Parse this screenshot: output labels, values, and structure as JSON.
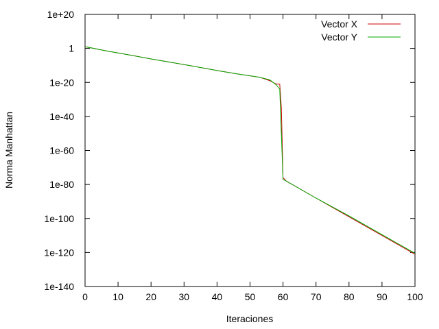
{
  "chart_data": {
    "type": "line",
    "title": "",
    "xlabel": "Iteraciones",
    "ylabel": "Norma Manhattan",
    "xlim": [
      0,
      100
    ],
    "ylim_log10": [
      -140,
      20
    ],
    "y_scale": "log",
    "grid": false,
    "legend_position": "top-right",
    "x_ticks": [
      0,
      10,
      20,
      30,
      40,
      50,
      60,
      70,
      80,
      90,
      100
    ],
    "x_tick_labels": [
      "0",
      "10",
      "20",
      "30",
      "40",
      "50",
      "60",
      "70",
      "80",
      "90",
      "100"
    ],
    "y_ticks_log10": [
      20,
      0,
      -20,
      -40,
      -60,
      -80,
      -100,
      -120,
      -140
    ],
    "y_tick_labels": [
      "1e+20",
      "1",
      "1e-20",
      "1e-40",
      "1e-60",
      "1e-80",
      "1e-100",
      "1e-120",
      "1e-140"
    ],
    "series": [
      {
        "name": "Vector X",
        "color": "#cc0000",
        "x": [
          0,
          7,
          14,
          20,
          27,
          33,
          40,
          46,
          53,
          56,
          57,
          58,
          59,
          59.5,
          60,
          61,
          70,
          80,
          90,
          100
        ],
        "log10y": [
          1,
          -1.7,
          -4,
          -6.2,
          -8.5,
          -10.5,
          -13,
          -15,
          -17,
          -19,
          -20,
          -21,
          -21,
          -35,
          -76,
          -78,
          -88,
          -99,
          -110,
          -121
        ]
      },
      {
        "name": "Vector Y",
        "color": "#00aa00",
        "x": [
          0,
          7,
          14,
          20,
          27,
          33,
          40,
          46,
          53,
          56,
          57,
          58,
          59,
          60,
          61,
          70,
          80,
          90,
          100
        ],
        "log10y": [
          1,
          -1.7,
          -4,
          -6.2,
          -8.5,
          -10.5,
          -13,
          -15,
          -17,
          -18.5,
          -20,
          -21.5,
          -24,
          -77,
          -78,
          -88,
          -98.5,
          -109.5,
          -120.5
        ]
      }
    ]
  }
}
